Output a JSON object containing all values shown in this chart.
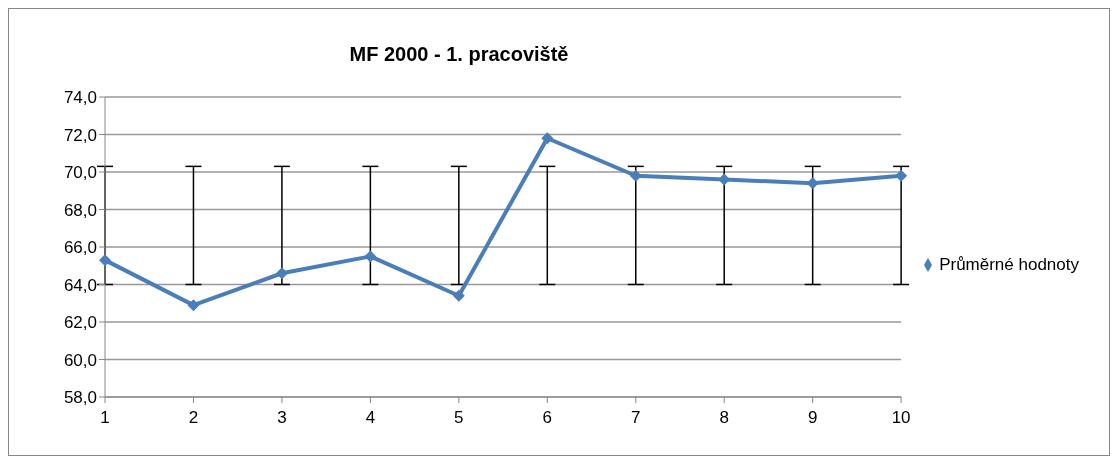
{
  "chart_data": {
    "type": "line",
    "title": "MF 2000 - 1. pracoviště",
    "categories": [
      "1",
      "2",
      "3",
      "4",
      "5",
      "6",
      "7",
      "8",
      "9",
      "10"
    ],
    "series": [
      {
        "name": "Průměrné hodnoty",
        "color": "#4a7ebb",
        "values": [
          65.3,
          62.9,
          64.6,
          65.5,
          63.4,
          71.8,
          69.8,
          69.6,
          69.4,
          69.8
        ],
        "errors": [
          [
            64.0,
            70.3
          ],
          [
            64.0,
            70.3
          ],
          [
            64.0,
            70.3
          ],
          [
            64.0,
            70.3
          ],
          [
            64.0,
            70.3
          ],
          [
            64.0,
            70.3
          ],
          [
            64.0,
            70.3
          ],
          [
            64.0,
            70.3
          ],
          [
            64.0,
            70.3
          ],
          [
            64.0,
            70.3
          ]
        ]
      }
    ],
    "ylim": [
      58,
      74
    ],
    "yticks": [
      {
        "value": 58,
        "label": "58,0"
      },
      {
        "value": 60,
        "label": "60,0"
      },
      {
        "value": 62,
        "label": "62,0"
      },
      {
        "value": 64,
        "label": "64,0"
      },
      {
        "value": 66,
        "label": "66,0"
      },
      {
        "value": 68,
        "label": "68,0"
      },
      {
        "value": 70,
        "label": "70,0"
      },
      {
        "value": 72,
        "label": "72,0"
      },
      {
        "value": 74,
        "label": "74,0"
      }
    ],
    "grid": "y",
    "legend": "right",
    "marker": "diamond",
    "line_style": "solid"
  }
}
